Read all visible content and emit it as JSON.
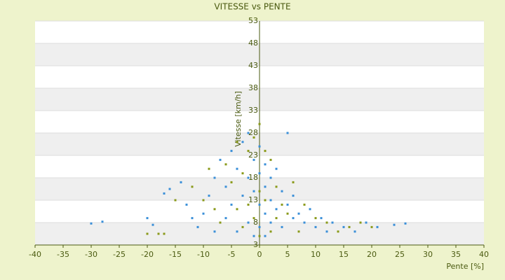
{
  "chart_data": {
    "type": "scatter",
    "title": "VITESSE vs PENTE",
    "x_label": "Pente [%]",
    "y_label": "Vitesse [km/h]",
    "xlim": [
      -40,
      40
    ],
    "xticks": [
      -40,
      -35,
      -30,
      -25,
      -20,
      -15,
      -10,
      -5,
      0,
      5,
      10,
      15,
      20,
      25,
      30,
      35,
      40
    ],
    "ylim": [
      3,
      53
    ],
    "yticks": [
      3,
      8,
      13,
      18,
      23,
      28,
      33,
      38,
      43,
      48,
      53
    ],
    "grid": true,
    "series": [
      {
        "color": "#3a8fd8",
        "x": [
          -30,
          -28,
          -20,
          -19,
          -16,
          -17,
          -14,
          -13,
          -12,
          -11,
          -10,
          -9,
          -8,
          -8,
          -7,
          -6,
          -6,
          -5,
          -5,
          -4,
          -4,
          -3,
          -3,
          -2,
          -2,
          -2,
          -1,
          -1,
          -1,
          0,
          0,
          0,
          0,
          1,
          1,
          1,
          1,
          2,
          2,
          2,
          3,
          3,
          4,
          4,
          5,
          5,
          6,
          6,
          7,
          8,
          9,
          10,
          11,
          12,
          13,
          15,
          17,
          19,
          21,
          24,
          26
        ],
        "values": [
          7.8,
          8.2,
          9,
          7.5,
          15.5,
          14.5,
          17,
          12,
          9,
          7,
          10,
          14,
          18,
          6,
          22,
          16,
          9,
          24,
          12,
          20,
          6,
          26,
          14,
          28,
          18,
          8,
          22,
          15,
          5,
          25,
          19,
          12,
          7,
          21,
          16,
          10,
          5,
          18,
          13,
          8,
          20,
          11,
          15,
          7,
          28,
          12,
          9,
          14,
          10,
          8,
          11,
          7,
          9,
          6,
          8,
          7,
          6,
          8,
          7,
          7.5,
          7.8
        ]
      },
      {
        "color": "#8a9a1a",
        "x": [
          -20,
          -18,
          -17,
          -15,
          -12,
          -10,
          -9,
          -8,
          -7,
          -6,
          -5,
          -4,
          -4,
          -3,
          -3,
          -2,
          -2,
          -1,
          -1,
          0,
          0,
          0,
          1,
          1,
          2,
          2,
          3,
          3,
          4,
          5,
          6,
          7,
          8,
          10,
          12,
          14,
          16,
          18,
          20
        ],
        "values": [
          5.5,
          5.5,
          5.5,
          13,
          16,
          13,
          20,
          11,
          8,
          21,
          17,
          26,
          11,
          19,
          7,
          24,
          12,
          27,
          9,
          30,
          15,
          5,
          24,
          13,
          22,
          6,
          16,
          9,
          12,
          10,
          17,
          6,
          12,
          9,
          8,
          6,
          7,
          8,
          7
        ]
      }
    ]
  }
}
